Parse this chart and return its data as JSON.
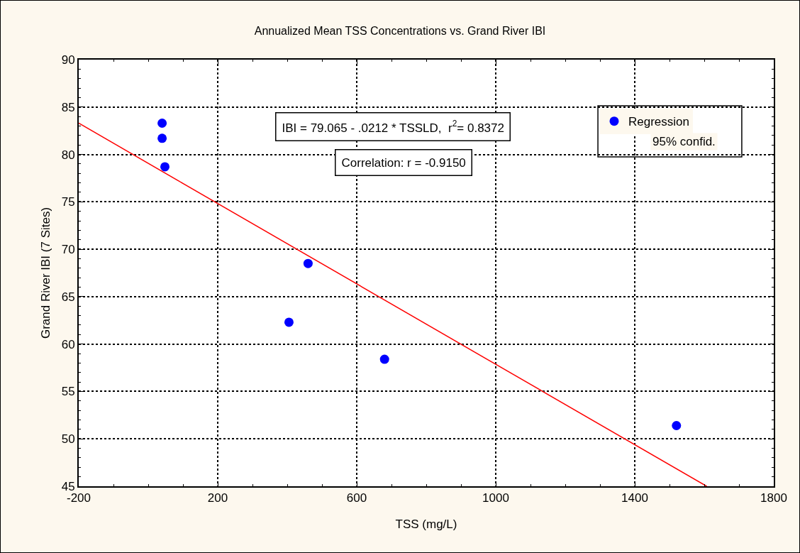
{
  "chart_data": {
    "type": "scatter",
    "title": "Annualized Mean TSS Concentrations vs. Grand River IBI",
    "xlabel": "TSS (mg/L)",
    "ylabel": "Grand River IBI (7 Sites)",
    "annotations": [
      "IBI = 79.065 - .0212 * TSSLD,  r$^{2}$= 0.8372",
      "Correlation: r = -0.9150",
      "95% confid."
    ],
    "series": [
      {
        "name": "Regression",
        "marker": "circle",
        "color": "#0000ff",
        "x": [
          40,
          40,
          48,
          460,
          405,
          680,
          1520
        ],
        "values": [
          83.3,
          81.7,
          78.7,
          68.5,
          62.3,
          58.4,
          51.4
        ]
      },
      {
        "type": "line",
        "marker": "none",
        "color": "#ff0000",
        "x": [
          -200,
          1607
        ],
        "values": [
          83.3,
          45
        ]
      }
    ],
    "xlim": [
      -200,
      1800
    ],
    "xticks": [
      -200,
      200,
      600,
      1000,
      1400,
      1800
    ],
    "ylim": [
      45,
      90
    ],
    "yticks": [
      45,
      50,
      55,
      60,
      65,
      70,
      75,
      80,
      85,
      90
    ],
    "grid": true,
    "legend": "top right",
    "line_style": "solid"
  }
}
